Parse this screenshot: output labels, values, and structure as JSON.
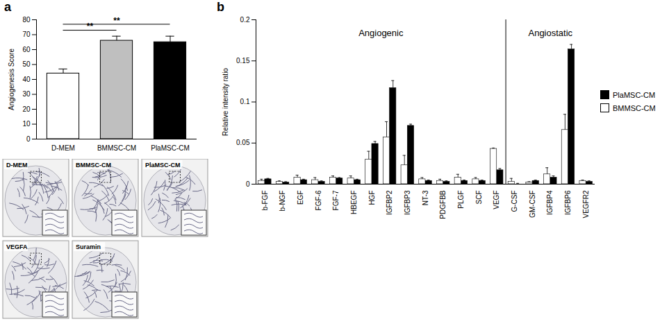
{
  "chart_data": [
    {
      "panel": "a",
      "type": "bar",
      "y_label": "Angiogenesis Score",
      "categories": [
        "D-MEM",
        "BMMSC-CM",
        "PlaMSC-CM"
      ],
      "values": [
        44,
        66,
        65
      ],
      "errors": [
        3,
        3,
        4
      ],
      "colors": [
        "#ffffff",
        "#bfbfbf",
        "#000000"
      ],
      "ylim": [
        0,
        80
      ],
      "yticks": [
        0,
        10,
        20,
        30,
        40,
        50,
        60,
        70,
        80
      ],
      "comparisons": [
        {
          "from": "D-MEM",
          "to": "BMMSC-CM",
          "label": "**",
          "y": 73
        },
        {
          "from": "D-MEM",
          "to": "PlaMSC-CM",
          "label": "**",
          "y": 77
        }
      ]
    },
    {
      "panel": "b",
      "type": "bar",
      "y_label": "Relative intensity ratio",
      "categories": [
        "b-FGF",
        "b-NGF",
        "EGF",
        "FGF-6",
        "FGF-7",
        "HBEGF",
        "HGF",
        "IGFBP2",
        "IGFBP3",
        "NT-3",
        "PDGFBB",
        "PLGF",
        "SCF",
        "VEGF",
        "G-CSF",
        "GM-CSF",
        "IGFBP4",
        "IGFBP6",
        "VEGFR2"
      ],
      "groups": [
        {
          "label": "Angiogenic",
          "count": 14
        },
        {
          "label": "Angiostatic",
          "count": 5
        }
      ],
      "series": [
        {
          "name": "PlaMSC-CM",
          "color": "#000000",
          "values": [
            0.006,
            0.002,
            0.005,
            0.003,
            0.007,
            0.005,
            0.049,
            0.117,
            0.071,
            0.004,
            0.003,
            0.004,
            0.004,
            0.017,
            0.0,
            0.004,
            0.008,
            0.164,
            0.003
          ],
          "errors": [
            0.001,
            0.001,
            0.001,
            0.001,
            0.001,
            0.001,
            0.003,
            0.009,
            0.002,
            0.001,
            0.001,
            0.001,
            0.001,
            0.002,
            0.001,
            0.001,
            0.002,
            0.006,
            0.001
          ]
        },
        {
          "name": "BMMSC-CM",
          "color": "#ffffff",
          "values": [
            0.004,
            0.003,
            0.008,
            0.005,
            0.008,
            0.007,
            0.03,
            0.057,
            0.023,
            0.006,
            0.004,
            0.008,
            0.006,
            0.043,
            0.003,
            0.002,
            0.012,
            0.066,
            0.004
          ],
          "errors": [
            0.002,
            0.001,
            0.003,
            0.003,
            0.002,
            0.003,
            0.01,
            0.019,
            0.012,
            0.002,
            0.002,
            0.004,
            0.002,
            0.001,
            0.004,
            0.001,
            0.008,
            0.019,
            0.001
          ]
        }
      ],
      "ylim": [
        0,
        0.2
      ],
      "yticks": [
        0,
        0.05,
        0.1,
        0.15,
        0.2
      ],
      "legend": "right"
    }
  ],
  "photos": {
    "labels": [
      "D-MEM",
      "BMMSC-CM",
      "PlaMSC-CM",
      "VEGFA",
      "Suramin"
    ]
  }
}
